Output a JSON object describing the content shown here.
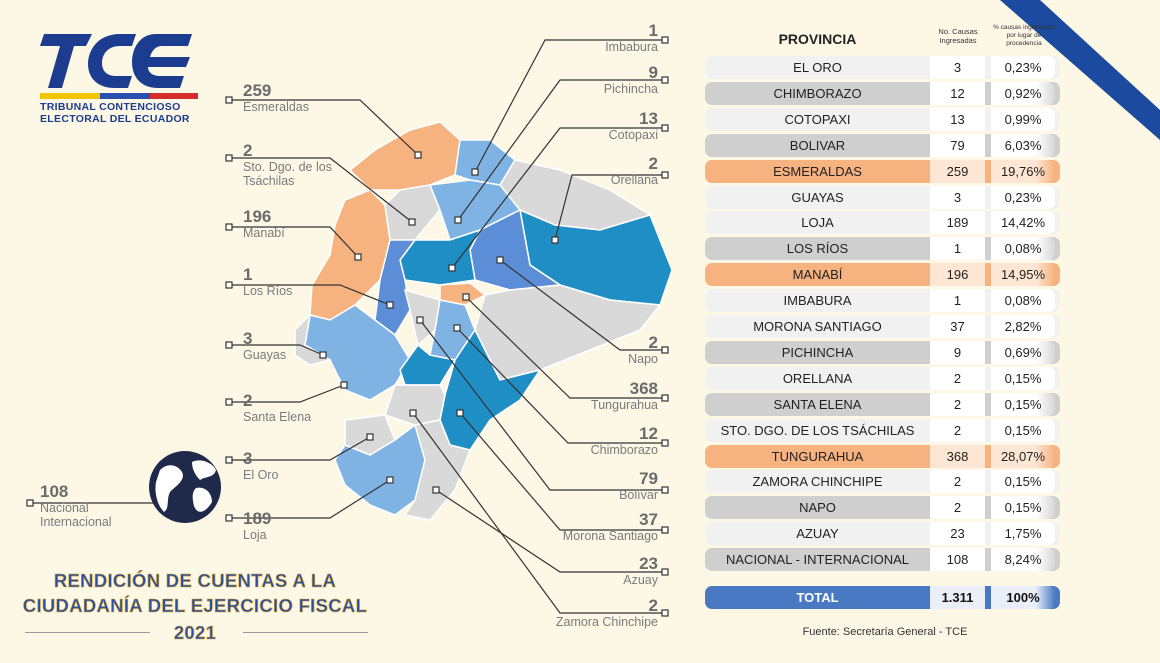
{
  "logo": {
    "mark": "TCE",
    "line1": "TRIBUNAL CONTENCIOSO",
    "line2": "ELECTORAL DEL ECUADOR"
  },
  "map_labels": {
    "esmeraldas": {
      "num": "259",
      "name": "Esmeraldas"
    },
    "sto_dgo": {
      "num": "2",
      "name1": "Sto. Dgo. de los",
      "name2": "Tsáchilas"
    },
    "manabi": {
      "num": "196",
      "name": "Manabí"
    },
    "los_rios": {
      "num": "1",
      "name": "Los Ríos"
    },
    "guayas": {
      "num": "3",
      "name": "Guayas"
    },
    "santa_elena": {
      "num": "2",
      "name": "Santa Elena"
    },
    "el_oro": {
      "num": "3",
      "name": "El Oro"
    },
    "loja": {
      "num": "189",
      "name": "Loja"
    },
    "nacional": {
      "num": "108",
      "name1": "Nacional",
      "name2": "Internacional"
    },
    "imbabura": {
      "num": "1",
      "name": "Imbabura"
    },
    "pichincha": {
      "num": "9",
      "name": "Pichincha"
    },
    "cotopaxi": {
      "num": "13",
      "name": "Cotopaxi"
    },
    "orellana": {
      "num": "2",
      "name": "Orellana"
    },
    "napo": {
      "num": "2",
      "name": "Napo"
    },
    "tungurahua": {
      "num": "368",
      "name": "Tungurahua"
    },
    "chimborazo": {
      "num": "12",
      "name": "Chimborazo"
    },
    "bolivar": {
      "num": "79",
      "name": "Bolívar"
    },
    "morona": {
      "num": "37",
      "name": "Morona Santiago"
    },
    "azuay": {
      "num": "23",
      "name": "Azuay"
    },
    "zamora": {
      "num": "2",
      "name": "Zamora Chinchipe"
    }
  },
  "table": {
    "header_provincia": "PROVINCIA",
    "header_causas": "No. Causas Ingresadas",
    "header_pct": "% causas ingresadas por lugar de procedencia",
    "rows": [
      {
        "p": "EL ORO",
        "n": "3",
        "c": "0,23%"
      },
      {
        "p": "CHIMBORAZO",
        "n": "12",
        "c": "0,92%"
      },
      {
        "p": "COTOPAXI",
        "n": "13",
        "c": "0,99%"
      },
      {
        "p": "BOLIVAR",
        "n": "79",
        "c": "6,03%"
      },
      {
        "p": "ESMERALDAS",
        "n": "259",
        "c": "19,76%"
      },
      {
        "p": "GUAYAS",
        "n": "3",
        "c": "0,23%"
      },
      {
        "p": "LOJA",
        "n": "189",
        "c": "14,42%"
      },
      {
        "p": "LOS RÍOS",
        "n": "1",
        "c": "0,08%"
      },
      {
        "p": "MANABÍ",
        "n": "196",
        "c": "14,95%"
      },
      {
        "p": "IMBABURA",
        "n": "1",
        "c": "0,08%"
      },
      {
        "p": "MORONA SANTIAGO",
        "n": "37",
        "c": "2,82%"
      },
      {
        "p": "PICHINCHA",
        "n": "9",
        "c": "0,69%"
      },
      {
        "p": "ORELLANA",
        "n": "2",
        "c": "0,15%"
      },
      {
        "p": "SANTA ELENA",
        "n": "2",
        "c": "0,15%"
      },
      {
        "p": "STO. DGO. DE LOS TSÁCHILAS",
        "n": "2",
        "c": "0,15%"
      },
      {
        "p": "TUNGURAHUA",
        "n": "368",
        "c": "28,07%"
      },
      {
        "p": "ZAMORA CHINCHIPE",
        "n": "2",
        "c": "0,15%"
      },
      {
        "p": "NAPO",
        "n": "2",
        "c": "0,15%"
      },
      {
        "p": "AZUAY",
        "n": "23",
        "c": "1,75%"
      },
      {
        "p": "NACIONAL - INTERNACIONAL",
        "n": "108",
        "c": "8,24%"
      }
    ],
    "total": {
      "p": "TOTAL",
      "n": "1.311",
      "c": "100%"
    }
  },
  "fuente": "Fuente: Secretaría General - TCE",
  "title": {
    "line1": "RENDICIÓN DE CUENTAS A LA",
    "line2": "CIUDADANÍA DEL EJERCICIO FISCAL",
    "line3": "2021"
  },
  "colors": {
    "blue_dark": "#1c3d8f",
    "orange": "#f6b27f",
    "map_blue": "#1e8ec4",
    "map_mid": "#5b8ed6",
    "map_light": "#7fb3e3",
    "map_gray": "#d9d9d9",
    "total_blue": "#4a79c4"
  }
}
